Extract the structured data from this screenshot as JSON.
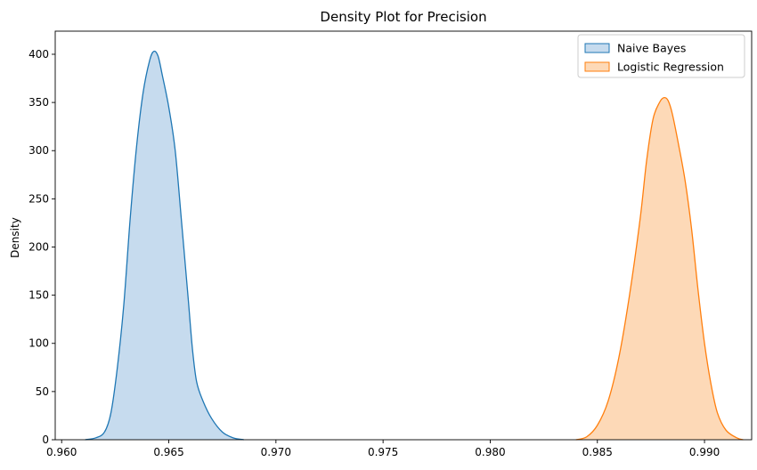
{
  "chart_data": {
    "type": "area",
    "title": "Density Plot for Precision",
    "xlabel": "",
    "ylabel": "Density",
    "xlim": [
      0.9597,
      0.9922
    ],
    "ylim": [
      0,
      424
    ],
    "xticks": [
      0.96,
      0.965,
      0.97,
      0.975,
      0.98,
      0.985,
      0.99
    ],
    "xtick_labels": [
      "0.960",
      "0.965",
      "0.970",
      "0.975",
      "0.980",
      "0.985",
      "0.990"
    ],
    "yticks": [
      0,
      50,
      100,
      150,
      200,
      250,
      300,
      350,
      400
    ],
    "ytick_labels": [
      "0",
      "50",
      "100",
      "150",
      "200",
      "250",
      "300",
      "350",
      "400"
    ],
    "grid": false,
    "legend_position": "top-right",
    "series": [
      {
        "name": "Naive Bayes",
        "color": "#1f77b4",
        "fill": "#c6dbee",
        "x": [
          0.9611,
          0.9616,
          0.962,
          0.9623,
          0.9626,
          0.9629,
          0.9632,
          0.9635,
          0.9638,
          0.9641,
          0.9643,
          0.9645,
          0.9647,
          0.965,
          0.9653,
          0.9656,
          0.9659,
          0.9661,
          0.9663,
          0.9666,
          0.967,
          0.9675,
          0.968,
          0.9685
        ],
        "y": [
          0,
          2,
          8,
          28,
          75,
          140,
          230,
          305,
          360,
          393,
          403,
          398,
          378,
          345,
          300,
          225,
          148,
          95,
          60,
          40,
          22,
          8,
          2,
          0
        ]
      },
      {
        "name": "Logistic Regression",
        "color": "#ff7f0e",
        "fill": "#fdd9b7",
        "x": [
          0.984,
          0.9845,
          0.985,
          0.9855,
          0.986,
          0.9865,
          0.987,
          0.9873,
          0.9876,
          0.9879,
          0.9881,
          0.9883,
          0.9885,
          0.9888,
          0.9891,
          0.9894,
          0.9897,
          0.99,
          0.9903,
          0.9906,
          0.991,
          0.9915,
          0.9918
        ],
        "y": [
          0,
          3,
          15,
          40,
          85,
          150,
          230,
          290,
          333,
          350,
          355,
          352,
          338,
          305,
          268,
          218,
          155,
          100,
          58,
          28,
          10,
          2,
          0
        ]
      }
    ]
  }
}
